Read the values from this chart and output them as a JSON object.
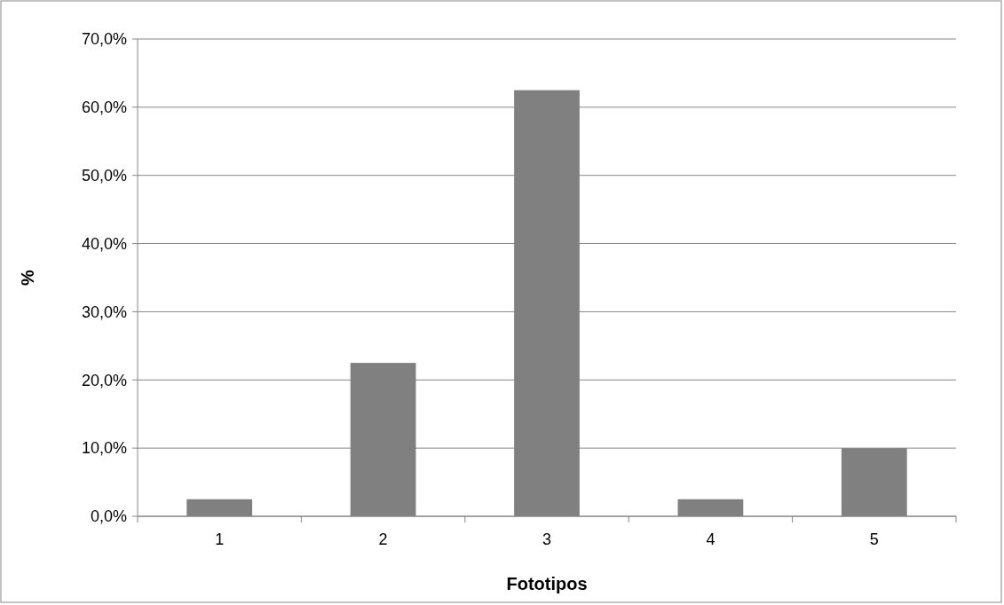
{
  "chart_data": {
    "type": "bar",
    "xlabel": "Fototipos",
    "ylabel": "%",
    "categories": [
      "1",
      "2",
      "3",
      "4",
      "5"
    ],
    "values": [
      2.5,
      22.5,
      62.5,
      2.5,
      10.0
    ],
    "color": "#808080",
    "ylim": [
      0,
      70
    ],
    "yticks": [
      {
        "value": 0,
        "label": "0,0%"
      },
      {
        "value": 10,
        "label": "10,0%"
      },
      {
        "value": 20,
        "label": "20,0%"
      },
      {
        "value": 30,
        "label": "30,0%"
      },
      {
        "value": 40,
        "label": "40,0%"
      },
      {
        "value": 50,
        "label": "50,0%"
      },
      {
        "value": 60,
        "label": "60,0%"
      },
      {
        "value": 70,
        "label": "70,0%"
      }
    ],
    "grid": "y"
  }
}
